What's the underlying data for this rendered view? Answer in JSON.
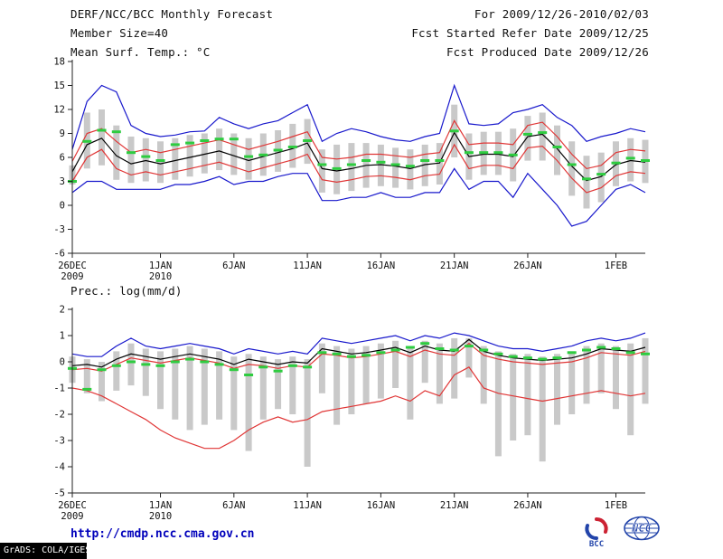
{
  "header": {
    "title": "DERF/NCC/BCC Monthly Forecast",
    "member_size": "Member Size=40",
    "temp_label": "Mean Surf. Temp.: °C",
    "for_range": "For 2009/12/26-2010/02/03",
    "fcst_refer": "Fcst Started Refer Date 2009/12/25",
    "fcst_produced": "Fcst Produced Date 2009/12/26"
  },
  "prec_label": "Prec.: log(mm/d)",
  "footer": {
    "url": "http://cmdp.ncc.cma.gov.cn",
    "grads_credit": "GrADS: COLA/IGES",
    "bcc_text": "BCC",
    "ncc_text": "NCC"
  },
  "colors": {
    "blue": "#1818cc",
    "red": "#e03636",
    "green": "#2ecc40",
    "gray": "#c9c9c9",
    "black": "#000000",
    "url_blue": "#0000bb",
    "logo_blue": "#2244aa",
    "logo_red": "#cc2233"
  },
  "chart_data": [
    {
      "type": "line",
      "title": "Mean Surf. Temp.: °C",
      "x_range": "2009/12/26 - 2010/02/03",
      "x_unit": "day",
      "n_days": 40,
      "ylim": [
        -6,
        18
      ],
      "yticks": [
        -6,
        -3,
        0,
        3,
        6,
        9,
        12,
        15,
        18
      ],
      "x_tick_labels": [
        {
          "index": 0,
          "label": "26DEC",
          "sub": "2009"
        },
        {
          "index": 6,
          "label": "1JAN",
          "sub": "2010"
        },
        {
          "index": 11,
          "label": "6JAN"
        },
        {
          "index": 16,
          "label": "11JAN"
        },
        {
          "index": 21,
          "label": "16JAN"
        },
        {
          "index": 26,
          "label": "21JAN"
        },
        {
          "index": 31,
          "label": "26JAN"
        },
        {
          "index": 37,
          "label": "1FEB"
        }
      ],
      "series": [
        {
          "name": "max",
          "color": "#1818cc",
          "values": [
            7.0,
            13.0,
            15.0,
            14.2,
            10.0,
            9.0,
            8.6,
            8.8,
            9.2,
            9.3,
            11.0,
            10.2,
            9.6,
            10.2,
            10.6,
            11.6,
            12.6,
            8.0,
            9.0,
            9.6,
            9.2,
            8.6,
            8.2,
            8.0,
            8.6,
            9.0,
            15.0,
            10.2,
            10.0,
            10.2,
            11.6,
            12.0,
            12.6,
            11.0,
            10.0,
            8.0,
            8.6,
            9.0,
            9.6,
            9.2
          ]
        },
        {
          "name": "min",
          "color": "#1818cc",
          "values": [
            1.6,
            3.0,
            3.0,
            2.0,
            2.0,
            2.0,
            2.0,
            2.6,
            2.6,
            3.0,
            3.6,
            2.6,
            3.0,
            3.0,
            3.6,
            4.0,
            4.0,
            0.6,
            0.6,
            1.0,
            1.0,
            1.6,
            1.0,
            1.0,
            1.6,
            1.6,
            4.6,
            2.0,
            3.0,
            3.0,
            1.0,
            4.0,
            2.0,
            0.0,
            -2.6,
            -2.0,
            0.0,
            2.0,
            2.6,
            1.6
          ]
        },
        {
          "name": "upper",
          "color": "#e03636",
          "values": [
            5.5,
            9.0,
            9.6,
            8.0,
            6.6,
            7.0,
            6.6,
            7.0,
            7.4,
            7.8,
            8.2,
            7.6,
            7.0,
            7.5,
            8.0,
            8.6,
            9.2,
            6.0,
            5.8,
            6.0,
            6.4,
            6.4,
            6.2,
            6.0,
            6.4,
            6.6,
            10.6,
            7.6,
            7.8,
            7.8,
            7.6,
            10.0,
            10.4,
            8.6,
            6.4,
            4.6,
            5.0,
            6.6,
            7.0,
            6.8
          ]
        },
        {
          "name": "lower",
          "color": "#e03636",
          "values": [
            3.0,
            6.0,
            7.0,
            4.6,
            3.8,
            4.2,
            3.8,
            4.2,
            4.6,
            5.0,
            5.4,
            4.8,
            4.2,
            4.7,
            5.2,
            5.7,
            6.4,
            3.2,
            2.9,
            3.2,
            3.6,
            3.7,
            3.5,
            3.2,
            3.7,
            3.9,
            7.6,
            4.6,
            5.0,
            5.0,
            4.6,
            7.2,
            7.4,
            5.6,
            3.4,
            1.6,
            2.2,
            3.7,
            4.2,
            4.0
          ]
        },
        {
          "name": "mean",
          "color": "#000000",
          "values": [
            4.2,
            7.6,
            8.4,
            6.2,
            5.2,
            5.6,
            5.2,
            5.6,
            6.0,
            6.4,
            6.8,
            6.2,
            5.6,
            6.1,
            6.6,
            7.1,
            7.8,
            4.6,
            4.3,
            4.6,
            5.0,
            5.1,
            4.9,
            4.6,
            5.1,
            5.3,
            9.1,
            6.1,
            6.4,
            6.4,
            6.1,
            8.6,
            8.9,
            7.1,
            4.9,
            3.1,
            3.6,
            5.1,
            5.6,
            5.4
          ]
        }
      ],
      "bars": {
        "name": "ensemble-spread",
        "color": "#c9c9c9",
        "top": [
          5.0,
          11.6,
          12.0,
          10.0,
          8.6,
          8.4,
          8.0,
          8.4,
          8.8,
          9.0,
          9.6,
          9.0,
          8.4,
          9.0,
          9.4,
          10.2,
          10.8,
          7.0,
          7.6,
          7.8,
          7.8,
          7.6,
          7.2,
          7.0,
          7.6,
          7.8,
          12.6,
          9.0,
          9.2,
          9.2,
          9.6,
          11.2,
          11.6,
          10.0,
          8.0,
          6.2,
          6.6,
          8.0,
          8.4,
          8.2
        ],
        "bottom": [
          2.6,
          4.6,
          5.0,
          3.2,
          2.8,
          3.0,
          2.8,
          3.2,
          3.6,
          4.0,
          4.4,
          3.8,
          3.2,
          3.7,
          4.2,
          4.7,
          5.2,
          1.6,
          1.4,
          1.8,
          2.2,
          2.4,
          2.2,
          2.0,
          2.4,
          2.6,
          6.0,
          3.2,
          3.8,
          3.8,
          3.0,
          5.6,
          5.6,
          3.8,
          1.2,
          -0.4,
          0.4,
          2.4,
          3.0,
          2.8
        ]
      },
      "dashes": {
        "name": "green-dashes",
        "color": "#2ecc40",
        "values": [
          3.0,
          8.0,
          9.4,
          9.2,
          6.6,
          6.1,
          5.6,
          7.6,
          7.8,
          8.1,
          8.3,
          8.3,
          6.1,
          6.3,
          6.9,
          7.3,
          8.1,
          5.1,
          4.6,
          5.1,
          5.6,
          5.4,
          5.1,
          4.9,
          5.6,
          5.6,
          9.3,
          6.6,
          6.6,
          6.6,
          6.3,
          8.9,
          9.1,
          7.3,
          5.1,
          3.3,
          3.9,
          5.3,
          5.9,
          5.6
        ]
      }
    },
    {
      "type": "line",
      "title": "Prec.: log(mm/d)",
      "x_range": "2009/12/26 - 2010/02/03",
      "x_unit": "day",
      "n_days": 40,
      "ylim": [
        -5,
        2
      ],
      "yticks": [
        -5,
        -4,
        -3,
        -2,
        -1,
        0,
        1,
        2
      ],
      "x_tick_labels": [
        {
          "index": 0,
          "label": "26DEC",
          "sub": "2009"
        },
        {
          "index": 6,
          "label": "1JAN",
          "sub": "2010"
        },
        {
          "index": 11,
          "label": "6JAN"
        },
        {
          "index": 16,
          "label": "11JAN"
        },
        {
          "index": 21,
          "label": "16JAN"
        },
        {
          "index": 26,
          "label": "21JAN"
        },
        {
          "index": 31,
          "label": "26JAN"
        },
        {
          "index": 37,
          "label": "1FEB"
        }
      ],
      "series": [
        {
          "name": "max",
          "color": "#1818cc",
          "values": [
            0.3,
            0.2,
            0.2,
            0.6,
            0.9,
            0.6,
            0.5,
            0.6,
            0.7,
            0.6,
            0.5,
            0.3,
            0.5,
            0.4,
            0.3,
            0.4,
            0.3,
            0.9,
            0.8,
            0.7,
            0.8,
            0.9,
            1.0,
            0.8,
            1.0,
            0.9,
            1.1,
            1.0,
            0.8,
            0.6,
            0.5,
            0.5,
            0.4,
            0.5,
            0.6,
            0.8,
            0.9,
            0.8,
            0.9,
            1.1
          ]
        },
        {
          "name": "upper",
          "color": "#e03636",
          "values": [
            -0.3,
            -0.25,
            -0.35,
            -0.1,
            0.15,
            0.05,
            -0.05,
            0.05,
            0.15,
            0.05,
            -0.05,
            -0.25,
            -0.1,
            -0.15,
            -0.25,
            -0.15,
            -0.2,
            0.3,
            0.25,
            0.15,
            0.2,
            0.3,
            0.4,
            0.2,
            0.45,
            0.3,
            0.25,
            0.7,
            0.25,
            0.1,
            0.0,
            -0.05,
            -0.1,
            -0.05,
            0.0,
            0.15,
            0.35,
            0.3,
            0.25,
            0.4
          ]
        },
        {
          "name": "lower",
          "color": "#e03636",
          "values": [
            -1.0,
            -1.1,
            -1.3,
            -1.6,
            -1.9,
            -2.2,
            -2.6,
            -2.9,
            -3.1,
            -3.3,
            -3.3,
            -3.0,
            -2.6,
            -2.3,
            -2.1,
            -2.3,
            -2.2,
            -1.9,
            -1.8,
            -1.7,
            -1.6,
            -1.5,
            -1.3,
            -1.5,
            -1.1,
            -1.3,
            -0.5,
            -0.2,
            -1.0,
            -1.2,
            -1.3,
            -1.4,
            -1.5,
            -1.4,
            -1.3,
            -1.2,
            -1.1,
            -1.2,
            -1.3,
            -1.2
          ]
        },
        {
          "name": "mean",
          "color": "#000000",
          "values": [
            -0.15,
            -0.1,
            -0.2,
            0.1,
            0.3,
            0.2,
            0.1,
            0.2,
            0.3,
            0.2,
            0.1,
            -0.1,
            0.1,
            0.0,
            -0.1,
            0.0,
            -0.05,
            0.5,
            0.4,
            0.3,
            0.35,
            0.45,
            0.55,
            0.35,
            0.6,
            0.45,
            0.4,
            0.85,
            0.4,
            0.25,
            0.15,
            0.1,
            0.05,
            0.1,
            0.15,
            0.3,
            0.5,
            0.45,
            0.4,
            0.55
          ]
        }
      ],
      "bars": {
        "name": "ensemble-spread",
        "color": "#c9c9c9",
        "top": [
          0.2,
          0.1,
          0.0,
          0.4,
          0.7,
          0.5,
          0.4,
          0.5,
          0.6,
          0.5,
          0.4,
          0.2,
          0.3,
          0.2,
          0.1,
          0.2,
          0.1,
          0.7,
          0.6,
          0.5,
          0.6,
          0.7,
          0.8,
          0.6,
          0.8,
          0.7,
          0.9,
          0.9,
          0.6,
          0.4,
          0.3,
          0.3,
          0.2,
          0.3,
          0.4,
          0.6,
          0.7,
          0.6,
          0.7,
          0.9
        ],
        "bottom": [
          -0.8,
          -1.2,
          -1.5,
          -1.1,
          -0.9,
          -1.3,
          -1.8,
          -2.2,
          -2.6,
          -2.4,
          -2.2,
          -2.6,
          -3.4,
          -2.2,
          -1.8,
          -2.0,
          -4.0,
          -1.2,
          -2.4,
          -2.0,
          -1.6,
          -1.4,
          -1.0,
          -2.2,
          -0.8,
          -1.6,
          -1.4,
          -0.6,
          -1.6,
          -3.6,
          -3.0,
          -2.8,
          -3.8,
          -2.4,
          -2.0,
          -1.6,
          -1.2,
          -1.8,
          -2.8,
          -1.6
        ]
      },
      "dashes": {
        "name": "green-dashes",
        "color": "#2ecc40",
        "values": [
          -0.25,
          -1.05,
          -0.3,
          -0.15,
          0.0,
          -0.1,
          -0.15,
          0.0,
          0.1,
          0.0,
          -0.1,
          -0.3,
          -0.5,
          -0.2,
          -0.35,
          -0.15,
          -0.2,
          0.35,
          0.3,
          0.2,
          0.25,
          0.35,
          0.45,
          0.55,
          0.7,
          0.5,
          0.45,
          0.6,
          0.45,
          0.3,
          0.2,
          0.15,
          0.1,
          0.15,
          0.35,
          0.45,
          0.55,
          0.5,
          0.35,
          0.3
        ]
      }
    }
  ]
}
